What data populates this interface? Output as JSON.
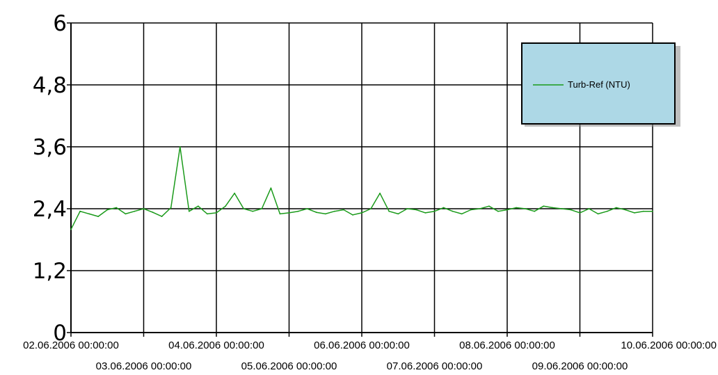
{
  "chart_data": {
    "type": "line",
    "title": "",
    "xlabel": "",
    "ylabel": "",
    "ylim": [
      0,
      6
    ],
    "xlim": [
      "02.06.2006 00:00:00",
      "10.06.2006 00:00:00"
    ],
    "grid": true,
    "legend_position": "top-right",
    "y_ticks": [
      "0",
      "1,2",
      "2,4",
      "3,6",
      "4,8",
      "6"
    ],
    "x_ticks": [
      "02.06.2006 00:00:00",
      "03.06.2006 00:00:00",
      "04.06.2006 00:00:00",
      "05.06.2006 00:00:00",
      "06.06.2006 00:00:00",
      "07.06.2006 00:00:00",
      "08.06.2006 00:00:00",
      "09.06.2006 00:00:00",
      "10.06.2006 00:00:00"
    ],
    "colors": {
      "series": "#1a9a1a",
      "legend_bg": "#add8e6",
      "grid": "#000000"
    },
    "series": [
      {
        "name": "Turb-Ref (NTU)",
        "x": [
          "02.06.2006 00:00",
          "02.06.2006 03:00",
          "02.06.2006 06:00",
          "02.06.2006 09:00",
          "02.06.2006 12:00",
          "02.06.2006 15:00",
          "02.06.2006 18:00",
          "02.06.2006 21:00",
          "03.06.2006 00:00",
          "03.06.2006 03:00",
          "03.06.2006 06:00",
          "03.06.2006 09:00",
          "03.06.2006 12:00",
          "03.06.2006 15:00",
          "03.06.2006 18:00",
          "03.06.2006 21:00",
          "04.06.2006 00:00",
          "04.06.2006 03:00",
          "04.06.2006 06:00",
          "04.06.2006 09:00",
          "04.06.2006 12:00",
          "04.06.2006 15:00",
          "04.06.2006 18:00",
          "04.06.2006 21:00",
          "05.06.2006 00:00",
          "05.06.2006 03:00",
          "05.06.2006 06:00",
          "05.06.2006 09:00",
          "05.06.2006 12:00",
          "05.06.2006 15:00",
          "05.06.2006 18:00",
          "05.06.2006 21:00",
          "06.06.2006 00:00",
          "06.06.2006 03:00",
          "06.06.2006 06:00",
          "06.06.2006 09:00",
          "06.06.2006 12:00",
          "06.06.2006 15:00",
          "06.06.2006 18:00",
          "06.06.2006 21:00",
          "07.06.2006 00:00",
          "07.06.2006 03:00",
          "07.06.2006 06:00",
          "07.06.2006 09:00",
          "07.06.2006 12:00",
          "07.06.2006 15:00",
          "07.06.2006 18:00",
          "07.06.2006 21:00",
          "08.06.2006 00:00",
          "08.06.2006 03:00",
          "08.06.2006 06:00",
          "08.06.2006 09:00",
          "08.06.2006 12:00",
          "08.06.2006 15:00",
          "08.06.2006 18:00",
          "08.06.2006 21:00",
          "09.06.2006 00:00",
          "09.06.2006 03:00",
          "09.06.2006 06:00",
          "09.06.2006 09:00",
          "09.06.2006 12:00",
          "09.06.2006 15:00",
          "09.06.2006 18:00",
          "09.06.2006 21:00",
          "10.06.2006 00:00"
        ],
        "y": [
          2.0,
          2.35,
          2.3,
          2.25,
          2.38,
          2.42,
          2.3,
          2.35,
          2.4,
          2.33,
          2.25,
          2.42,
          3.6,
          2.35,
          2.45,
          2.3,
          2.32,
          2.45,
          2.7,
          2.4,
          2.35,
          2.4,
          2.8,
          2.3,
          2.32,
          2.35,
          2.4,
          2.33,
          2.3,
          2.35,
          2.38,
          2.28,
          2.32,
          2.4,
          2.7,
          2.35,
          2.3,
          2.4,
          2.38,
          2.32,
          2.35,
          2.42,
          2.35,
          2.3,
          2.38,
          2.4,
          2.45,
          2.35,
          2.38,
          2.42,
          2.4,
          2.35,
          2.45,
          2.42,
          2.4,
          2.38,
          2.32,
          2.4,
          2.3,
          2.35,
          2.42,
          2.38,
          2.32,
          2.35,
          2.35
        ]
      }
    ]
  }
}
